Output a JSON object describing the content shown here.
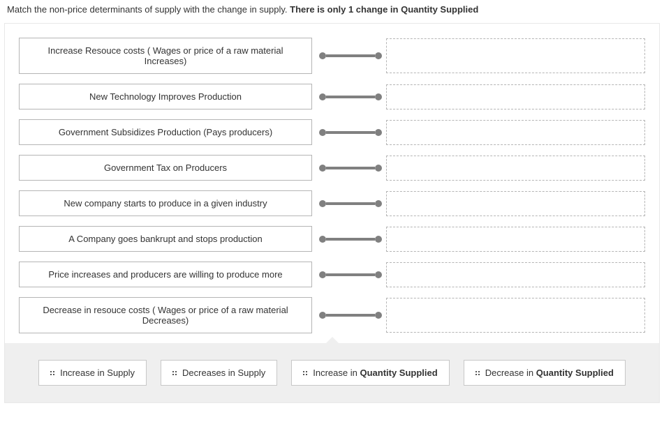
{
  "instructions_plain": "Match the non-price determinants of supply with the change in supply. ",
  "instructions_bold": "There is only 1 change in Quantity Supplied",
  "rows": [
    {
      "text": "Increase Resouce costs ( Wages or price of a raw material Increases)",
      "tall": true
    },
    {
      "text": "New Technology Improves Production",
      "tall": false
    },
    {
      "text": "Government Subsidizes Production (Pays producers)",
      "tall": false
    },
    {
      "text": "Government Tax on Producers",
      "tall": false
    },
    {
      "text": "New company starts to produce in a given industry",
      "tall": false
    },
    {
      "text": "A Company goes bankrupt and stops production",
      "tall": false
    },
    {
      "text": "Price increases and producers are willing to produce more",
      "tall": false
    },
    {
      "text": "Decrease in resouce costs ( Wages or price of a raw material Decreases)",
      "tall": true
    }
  ],
  "choices": [
    {
      "plain": "Increase in Supply",
      "bold": ""
    },
    {
      "plain": "Decreases in Supply",
      "bold": ""
    },
    {
      "plain": "Increase in ",
      "bold": "Quantity Supplied"
    },
    {
      "plain": "Decrease in ",
      "bold": "Quantity Supplied"
    }
  ],
  "colors": {
    "border": "#b5b5b5",
    "connector": "#808080",
    "footer_bg": "#efefef",
    "text": "#333333"
  }
}
